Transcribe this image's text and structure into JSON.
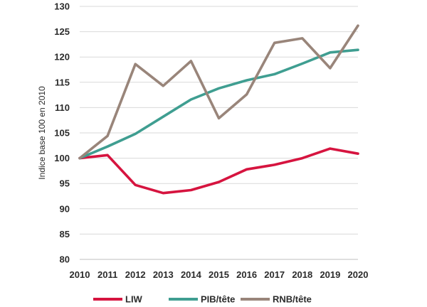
{
  "chart_data": {
    "type": "line",
    "title": "",
    "xlabel": "",
    "ylabel": "Indice base 100 en 2010",
    "x": [
      2010,
      2011,
      2012,
      2013,
      2014,
      2015,
      2016,
      2017,
      2018,
      2019,
      2020
    ],
    "x_tick_labels": [
      "2010",
      "2011",
      "2012",
      "2013",
      "2014",
      "2015",
      "2016",
      "2017",
      "2018",
      "2019",
      "2020"
    ],
    "y_tick_labels": [
      "80",
      "85",
      "90",
      "95",
      "100",
      "105",
      "110",
      "115",
      "120",
      "125",
      "130"
    ],
    "ylim": [
      80,
      130
    ],
    "y_tick_step": 5,
    "grid": true,
    "legend_position": "bottom",
    "series": [
      {
        "name": "LIW",
        "color": "#d6143f",
        "values": [
          100,
          100.6,
          94.7,
          93.1,
          93.7,
          95.3,
          97.8,
          98.7,
          100.0,
          101.9,
          100.9
        ]
      },
      {
        "name": "PIB/tête",
        "color": "#3f9e91",
        "values": [
          100,
          102.3,
          104.8,
          108.2,
          111.6,
          113.8,
          115.4,
          116.6,
          118.7,
          120.9,
          121.4
        ]
      },
      {
        "name": "RNB/tête",
        "color": "#99857a",
        "values": [
          100,
          104.4,
          118.6,
          114.3,
          119.2,
          107.9,
          112.6,
          122.8,
          123.7,
          117.8,
          126.2
        ]
      }
    ]
  }
}
